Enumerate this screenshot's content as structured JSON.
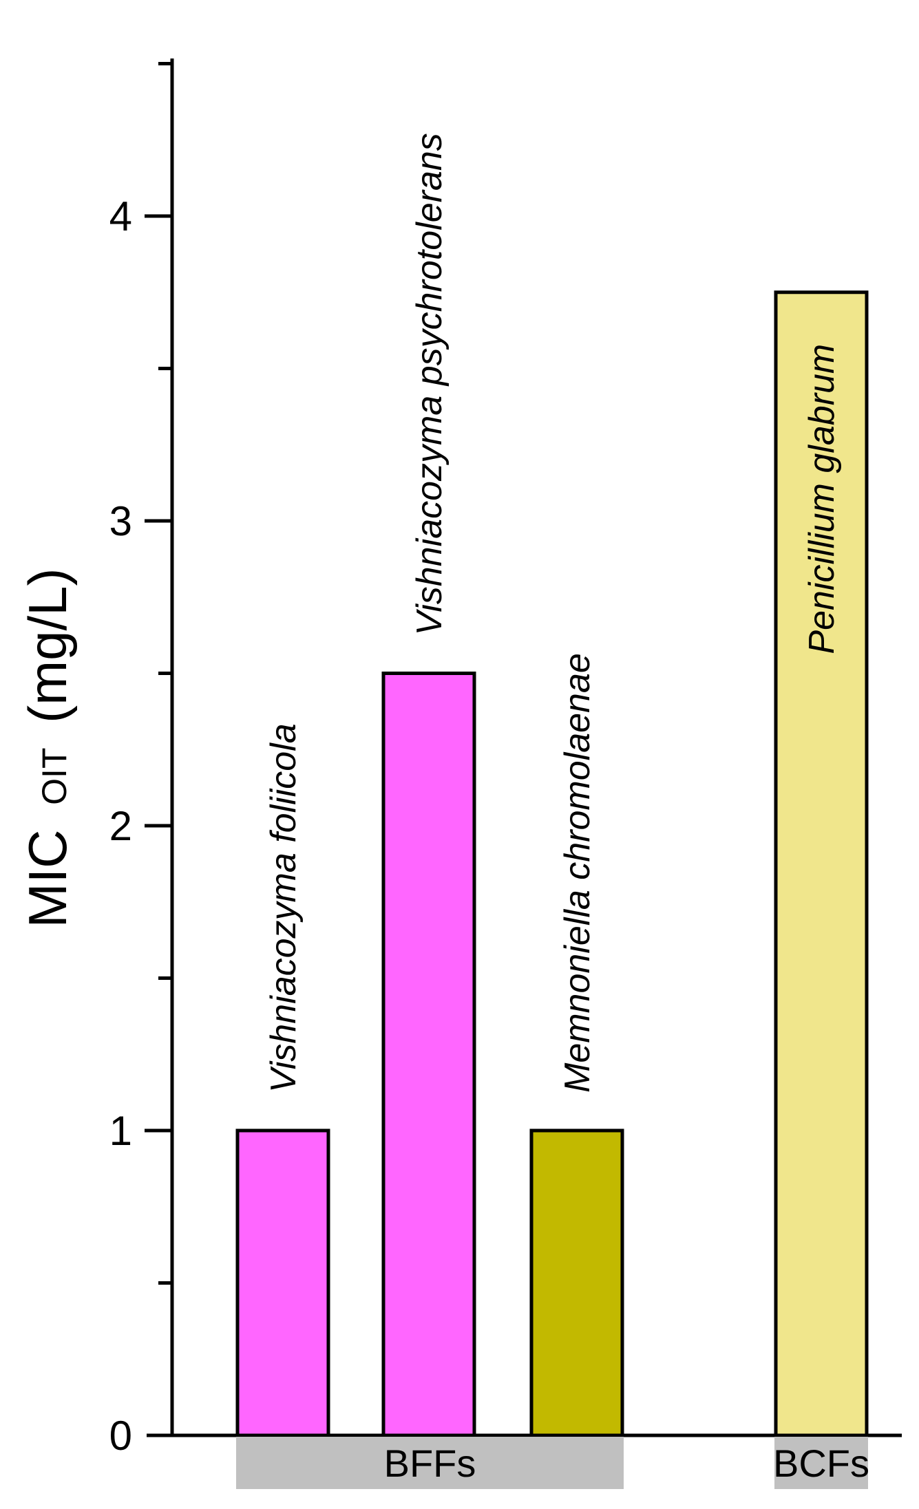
{
  "chart_data": {
    "type": "bar",
    "ylabel": "MIC",
    "ylabel_subscript": "OIT",
    "ylabel_unit": "(mg/L)",
    "ylim": [
      0,
      4.5
    ],
    "yticks": [
      "0",
      "1",
      "2",
      "3",
      "4"
    ],
    "categories": [
      "Vishniacozyma foliicola",
      "Vishniacozyma psychrotolerans",
      "Memnoniella chromolaenae",
      "Penicillium glabrum"
    ],
    "values": [
      1,
      2.5,
      1,
      3.75
    ],
    "colors": [
      "#ff66ff",
      "#ff66ff",
      "#c2b900",
      "#f0e68c"
    ],
    "groups": [
      {
        "label": "BFFs",
        "members": [
          0,
          1,
          2
        ]
      },
      {
        "label": "BCFs",
        "members": [
          3
        ]
      }
    ],
    "grid": false
  }
}
